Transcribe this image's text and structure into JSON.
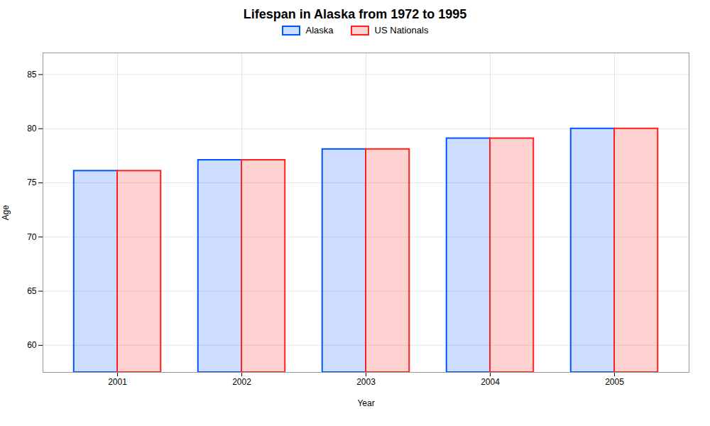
{
  "chart_data": {
    "type": "bar",
    "title": "Lifespan in Alaska from 1972 to 1995",
    "xlabel": "Year",
    "ylabel": "Age",
    "categories": [
      "2001",
      "2002",
      "2003",
      "2004",
      "2005"
    ],
    "series": [
      {
        "name": "Alaska",
        "color": "#0055ff",
        "values": [
          76.1,
          77.1,
          78.1,
          79.1,
          80.0
        ]
      },
      {
        "name": "US Nationals",
        "color": "#ff2020",
        "values": [
          76.1,
          77.1,
          78.1,
          79.1,
          80.0
        ]
      }
    ],
    "ylim": [
      57.5,
      87
    ],
    "yticks": [
      60,
      65,
      70,
      75,
      80,
      85
    ],
    "grid": true,
    "legend": "top"
  }
}
